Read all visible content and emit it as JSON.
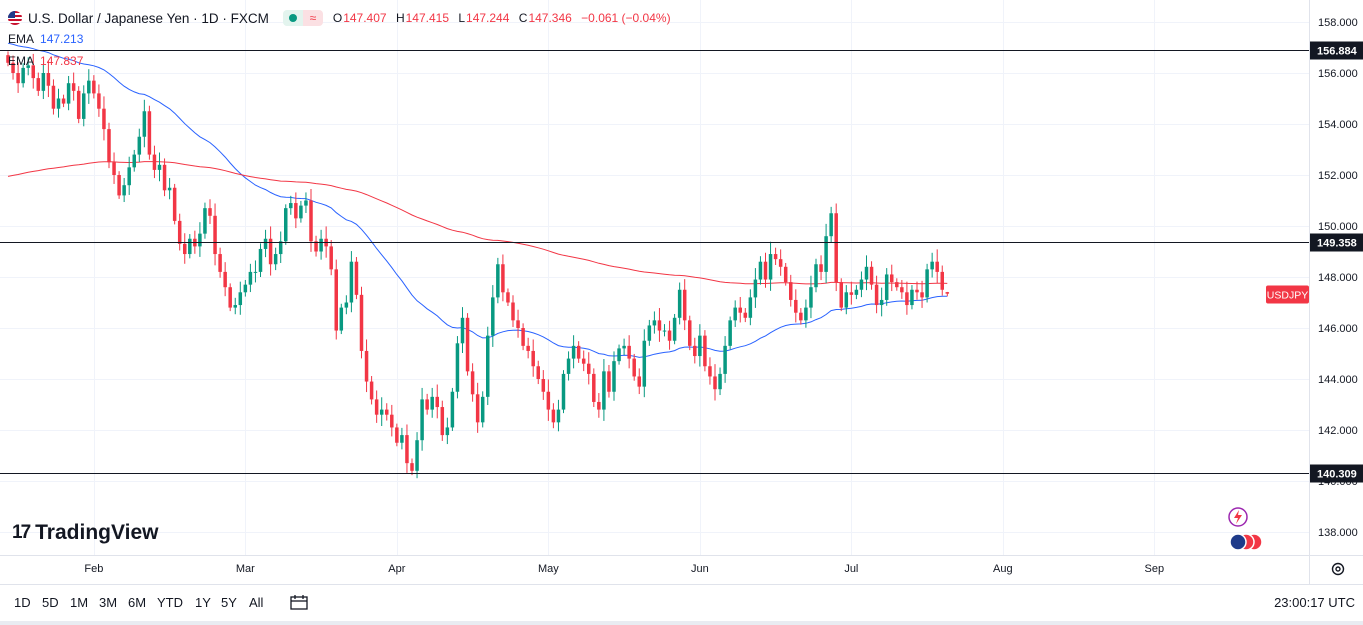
{
  "header": {
    "symbol_title": "U.S. Dollar / Japanese Yen · 1D · FXCM",
    "wave_glyph": "≈",
    "ohlc": [
      {
        "key": "O",
        "value": "147.407"
      },
      {
        "key": "H",
        "value": "147.415"
      },
      {
        "key": "L",
        "value": "147.244"
      },
      {
        "key": "C",
        "value": "147.346"
      }
    ],
    "change": "−0.061 (−0.04%)"
  },
  "indicators": [
    {
      "label": "EMA",
      "value": "147.213",
      "color": "#2962ff"
    },
    {
      "label": "EMA",
      "value": "147.837",
      "color": "#f23645"
    }
  ],
  "price_axis": {
    "ticks": [
      "158.000",
      "156.000",
      "154.000",
      "152.000",
      "150.000",
      "148.000",
      "146.000",
      "144.000",
      "142.000",
      "140.000",
      "138.000"
    ],
    "tick_values": [
      158,
      156,
      154,
      152,
      150,
      148,
      146,
      144,
      142,
      140,
      138
    ]
  },
  "time_axis": {
    "labels": [
      "Feb",
      "Mar",
      "Apr",
      "May",
      "Jun",
      "Jul",
      "Aug",
      "Sep"
    ],
    "label_bar_index": [
      17,
      47,
      77,
      107,
      137,
      167,
      197,
      227
    ]
  },
  "levels": [
    {
      "value": 156.884,
      "label": "156.884"
    },
    {
      "value": 149.358,
      "label": "149.358"
    },
    {
      "value": 140.309,
      "label": "140.309"
    }
  ],
  "symbol_badge": {
    "label": "USDJPY",
    "value": 147.346
  },
  "colors": {
    "up": "#089981",
    "down": "#f23645",
    "ema_fast": "#2962ff",
    "ema_slow": "#f23645",
    "level": "#131722",
    "badge": "#f23645"
  },
  "brand": {
    "logo_text": "TradingView",
    "logo_mark": "17"
  },
  "ranges": [
    "1D",
    "5D",
    "1M",
    "3M",
    "6M",
    "YTD",
    "1Y",
    "5Y",
    "All"
  ],
  "clock": "23:00:17 UTC",
  "chart_data": {
    "type": "candlestick",
    "title": "U.S. Dollar / Japanese Yen · 1D · FXCM",
    "ylim": [
      137,
      159
    ],
    "closes": [
      156.4,
      156.0,
      155.6,
      156.2,
      156.3,
      155.8,
      155.3,
      156.0,
      155.5,
      154.6,
      155.0,
      154.8,
      155.6,
      155.3,
      154.2,
      155.2,
      155.7,
      155.2,
      154.6,
      153.8,
      152.5,
      152.0,
      151.2,
      151.6,
      152.3,
      152.8,
      153.5,
      154.5,
      152.8,
      152.2,
      152.4,
      151.4,
      151.5,
      150.2,
      149.3,
      148.9,
      149.5,
      149.2,
      149.7,
      150.7,
      150.4,
      148.9,
      148.2,
      147.6,
      146.8,
      146.9,
      147.4,
      147.7,
      148.2,
      148.2,
      149.1,
      149.5,
      148.5,
      148.9,
      149.4,
      150.7,
      150.9,
      150.3,
      150.8,
      151.0,
      149.4,
      149.0,
      149.5,
      149.2,
      148.3,
      145.9,
      146.8,
      147.0,
      148.6,
      147.3,
      145.1,
      143.9,
      143.2,
      142.6,
      142.8,
      142.6,
      142.1,
      141.5,
      141.8,
      140.7,
      140.4,
      141.6,
      143.2,
      142.8,
      143.3,
      142.9,
      141.8,
      142.1,
      143.5,
      145.4,
      146.4,
      144.3,
      143.4,
      142.3,
      143.3,
      145.7,
      147.2,
      148.5,
      147.4,
      147.0,
      146.3,
      146.0,
      145.3,
      145.1,
      144.5,
      144.0,
      143.5,
      142.8,
      142.3,
      142.8,
      144.2,
      144.8,
      145.3,
      144.8,
      144.6,
      144.2,
      143.1,
      142.8,
      144.3,
      143.5,
      144.7,
      145.2,
      145.3,
      144.8,
      144.1,
      143.7,
      145.5,
      146.1,
      146.3,
      145.9,
      145.9,
      145.5,
      146.4,
      147.5,
      146.3,
      145.3,
      144.9,
      145.7,
      144.5,
      144.1,
      143.6,
      144.2,
      145.3,
      146.3,
      146.8,
      146.6,
      146.4,
      147.2,
      147.9,
      148.6,
      147.9,
      148.9,
      148.7,
      148.4,
      147.8,
      147.1,
      146.6,
      146.3,
      146.8,
      147.6,
      148.5,
      148.2,
      149.6,
      150.5,
      147.8,
      146.8,
      147.4,
      147.3,
      147.5,
      147.9,
      148.4,
      147.7,
      146.9,
      147.1,
      148.1,
      147.8,
      147.6,
      147.4,
      146.9,
      147.5,
      147.4,
      147.2,
      148.3,
      148.6,
      148.2,
      147.5,
      147.346
    ]
  }
}
